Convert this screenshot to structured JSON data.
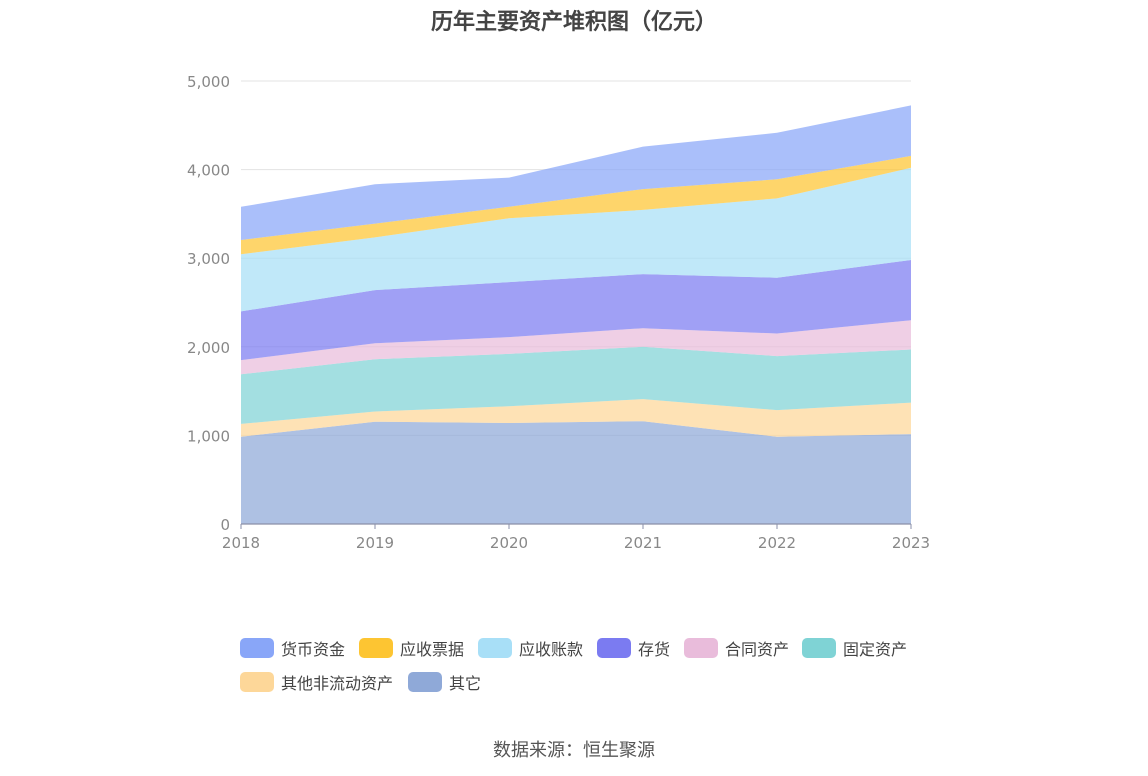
{
  "chart_data": {
    "type": "area",
    "stacked": true,
    "title": "历年主要资产堆积图（亿元）",
    "categories": [
      "2018",
      "2019",
      "2020",
      "2021",
      "2022",
      "2023"
    ],
    "y_ticks": [
      "0",
      "1,000",
      "2,000",
      "3,000",
      "4,000",
      "5,000"
    ],
    "ylim": [
      0,
      5000
    ],
    "grid": true,
    "legend_position": "bottom",
    "series": [
      {
        "name": "其它",
        "color": "#8fa9d8",
        "values": [
          985,
          1155,
          1140,
          1160,
          985,
          1015
        ]
      },
      {
        "name": "其他非流动资产",
        "color": "#fdd799",
        "values": [
          145,
          115,
          190,
          250,
          300,
          355
        ]
      },
      {
        "name": "固定资产",
        "color": "#7fd3d5",
        "values": [
          560,
          590,
          590,
          590,
          610,
          600
        ]
      },
      {
        "name": "合同资产",
        "color": "#e9bcdb",
        "values": [
          160,
          180,
          190,
          210,
          255,
          330
        ]
      },
      {
        "name": "存货",
        "color": "#7b7bf1",
        "values": [
          550,
          600,
          620,
          610,
          630,
          680
        ]
      },
      {
        "name": "应收账款",
        "color": "#a8dff7",
        "values": [
          645,
          595,
          720,
          725,
          895,
          1040
        ]
      },
      {
        "name": "应收票据",
        "color": "#fdc532",
        "values": [
          160,
          155,
          130,
          235,
          215,
          135
        ]
      },
      {
        "name": "货币资金",
        "color": "#89a6f8",
        "values": [
          375,
          445,
          330,
          480,
          525,
          570
        ]
      }
    ]
  },
  "legend": [
    {
      "label": "货币资金",
      "color": "#89a6f8"
    },
    {
      "label": "应收票据",
      "color": "#fdc532"
    },
    {
      "label": "应收账款",
      "color": "#a8dff7"
    },
    {
      "label": "存货",
      "color": "#7b7bf1"
    },
    {
      "label": "合同资产",
      "color": "#e9bcdb"
    },
    {
      "label": "固定资产",
      "color": "#7fd3d5"
    },
    {
      "label": "其他非流动资产",
      "color": "#fdd799"
    },
    {
      "label": "其它",
      "color": "#8fa9d8"
    }
  ],
  "source": "数据来源：恒生聚源"
}
